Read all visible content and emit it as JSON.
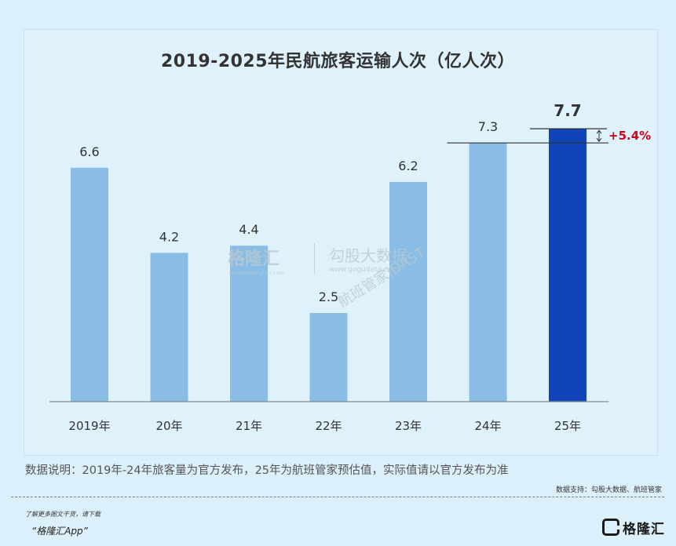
{
  "chart_data": {
    "type": "bar",
    "title": "2019-2025年民航旅客运输人次（亿人次）",
    "categories": [
      "2019年",
      "20年",
      "21年",
      "22年",
      "23年",
      "24年",
      "25年"
    ],
    "values": [
      6.6,
      4.2,
      4.4,
      2.5,
      6.2,
      7.3,
      7.7
    ],
    "data_labels": [
      "6.6",
      "4.2",
      "4.4",
      "2.5",
      "6.2",
      "7.3",
      "7.7"
    ],
    "ylim": [
      0,
      8.5
    ],
    "xlabel": "",
    "ylabel": "",
    "highlight_index": 6,
    "annotation": {
      "text": "+5.4%",
      "from_index": 5,
      "to_index": 6,
      "color": "#d0021b"
    },
    "colors": {
      "bar": "#89bde6",
      "highlight": "#1144b8",
      "label": "#333333"
    }
  },
  "footer": {
    "note": "数据说明：2019年-24年旅客量为官方发布，25年为航班管家预估值，实际值请以官方发布为准",
    "source": "数据支持：勾股大数据、航班管家",
    "promo_line1": "了解更多图文干货，请下载",
    "promo_line2": "“格隆汇App”",
    "brand": "格隆汇"
  },
  "watermarks": {
    "w1_brand": "格隆汇",
    "w1_url": "www.gelonghui.com",
    "w2_brand": "勾股大数据",
    "w2_url": "www.gogudata.com",
    "w3": "航班管家|DAST"
  }
}
